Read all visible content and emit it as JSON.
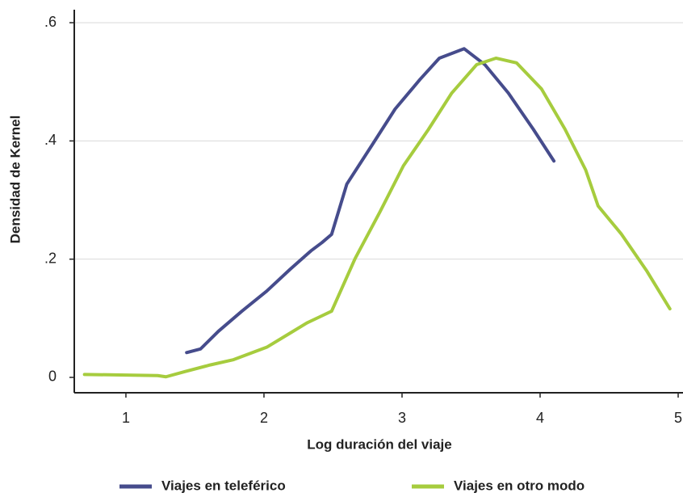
{
  "chart_data": {
    "type": "line",
    "xlabel": "Log duración del viaje",
    "ylabel": "Densidad de Kernel",
    "xlim": [
      0.626,
      5.035
    ],
    "xticks": [
      1,
      2,
      3,
      4,
      5
    ],
    "ylim": [
      -0.026,
      0.622
    ],
    "yticks": [
      0,
      {
        "value": 0.2,
        "label": ".2"
      },
      {
        "value": 0.4,
        "label": ".4"
      },
      {
        "value": 0.6,
        "label": ".6"
      }
    ],
    "grid": true,
    "series": [
      {
        "name": "Viajes en teleférico",
        "color": "#464c8c",
        "x": [
          1.44,
          1.54,
          1.67,
          1.84,
          2.02,
          2.19,
          2.34,
          2.42,
          2.49,
          2.6,
          2.78,
          2.95,
          3.13,
          3.27,
          3.45,
          3.6,
          3.77,
          3.95,
          4.1
        ],
        "values": [
          0.042,
          0.048,
          0.078,
          0.112,
          0.146,
          0.183,
          0.214,
          0.228,
          0.242,
          0.327,
          0.392,
          0.454,
          0.504,
          0.54,
          0.556,
          0.529,
          0.481,
          0.42,
          0.366
        ]
      },
      {
        "name": "Viajes en otro modo",
        "color": "#a6cc3e",
        "x": [
          0.7,
          1.23,
          1.29,
          1.43,
          1.61,
          1.78,
          2.02,
          2.19,
          2.31,
          2.4,
          2.49,
          2.66,
          2.84,
          3.01,
          3.19,
          3.36,
          3.54,
          3.68,
          3.83,
          4.01,
          4.18,
          4.33,
          4.42,
          4.59,
          4.77,
          4.94
        ],
        "values": [
          0.005,
          0.003,
          0.001,
          0.01,
          0.021,
          0.03,
          0.051,
          0.075,
          0.092,
          0.102,
          0.112,
          0.201,
          0.28,
          0.358,
          0.419,
          0.481,
          0.529,
          0.54,
          0.532,
          0.488,
          0.42,
          0.351,
          0.29,
          0.242,
          0.181,
          0.116
        ]
      }
    ]
  }
}
